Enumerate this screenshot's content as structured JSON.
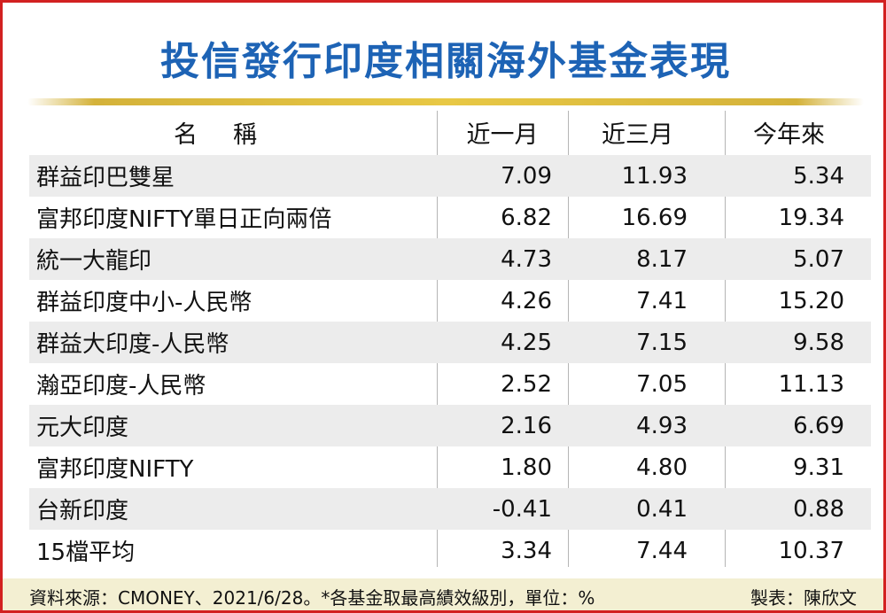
{
  "title": "投信發行印度相關海外基金表現",
  "header": {
    "name": "名稱",
    "m1": "近一月",
    "m3": "近三月",
    "ytd": "今年來"
  },
  "rows": [
    {
      "name": "群益印巴雙星",
      "m1": "7.09",
      "m3": "11.93",
      "ytd": "5.34"
    },
    {
      "name": "富邦印度NIFTY單日正向兩倍",
      "m1": "6.82",
      "m3": "16.69",
      "ytd": "19.34"
    },
    {
      "name": "統一大龍印",
      "m1": "4.73",
      "m3": "8.17",
      "ytd": "5.07"
    },
    {
      "name": "群益印度中小-人民幣",
      "m1": "4.26",
      "m3": "7.41",
      "ytd": "15.20"
    },
    {
      "name": "群益大印度-人民幣",
      "m1": "4.25",
      "m3": "7.15",
      "ytd": "9.58"
    },
    {
      "name": "瀚亞印度-人民幣",
      "m1": "2.52",
      "m3": "7.05",
      "ytd": "11.13"
    },
    {
      "name": "元大印度",
      "m1": "2.16",
      "m3": "4.93",
      "ytd": "6.69"
    },
    {
      "name": "富邦印度NIFTY",
      "m1": "1.80",
      "m3": "4.80",
      "ytd": "9.31"
    },
    {
      "name": "台新印度",
      "m1": "-0.41",
      "m3": "0.41",
      "ytd": "0.88"
    },
    {
      "name": "15檔平均",
      "m1": "3.34",
      "m3": "7.44",
      "ytd": "10.37"
    }
  ],
  "footer": {
    "source": "資料來源：CMONEY、2021/6/28。*各基金取最高績效級別，單位：%",
    "credit": "製表：陳欣文"
  }
}
